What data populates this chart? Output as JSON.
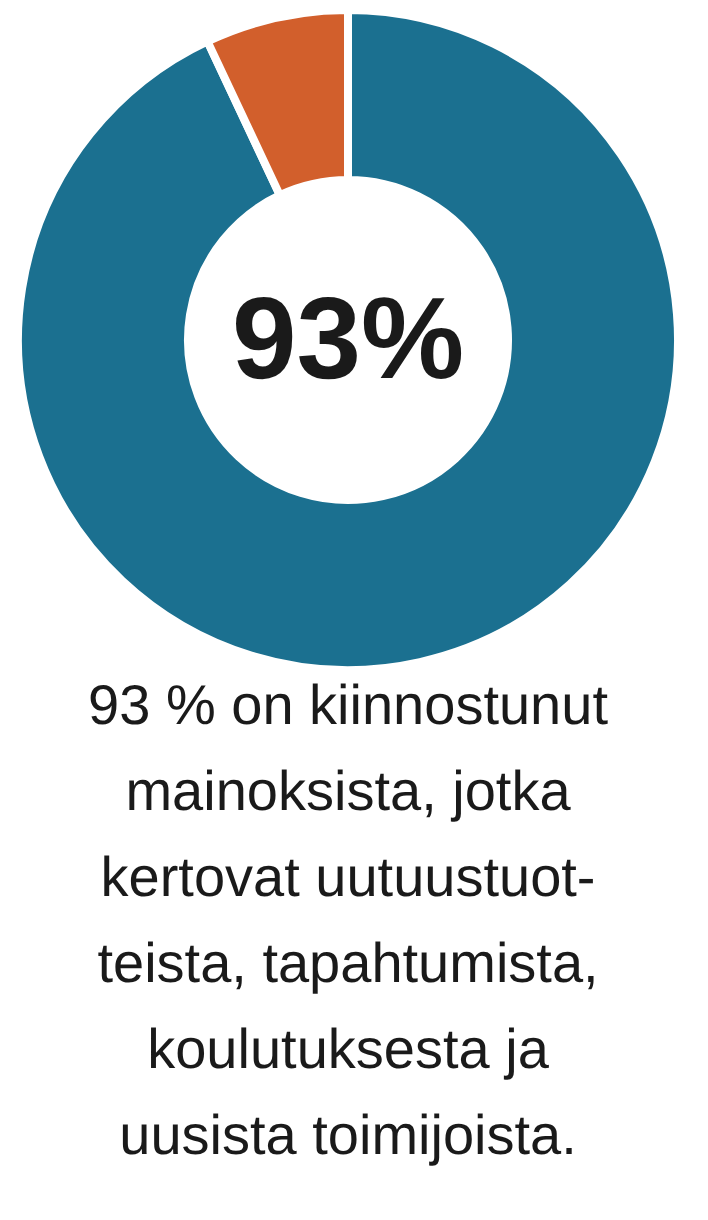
{
  "chart_data": {
    "type": "donut",
    "categories": [
      null,
      null
    ],
    "values": [
      93,
      7
    ],
    "colors": [
      "#1b7090",
      "#d25f2c"
    ],
    "annotations": [
      "93%",
      "93 % on kiinnostunut\nmainoksista, jotka\nkertovat uutuustuot-\nteista, tapahtumista,\nkoulutuksesta ja\nuusista toimijoista."
    ]
  }
}
